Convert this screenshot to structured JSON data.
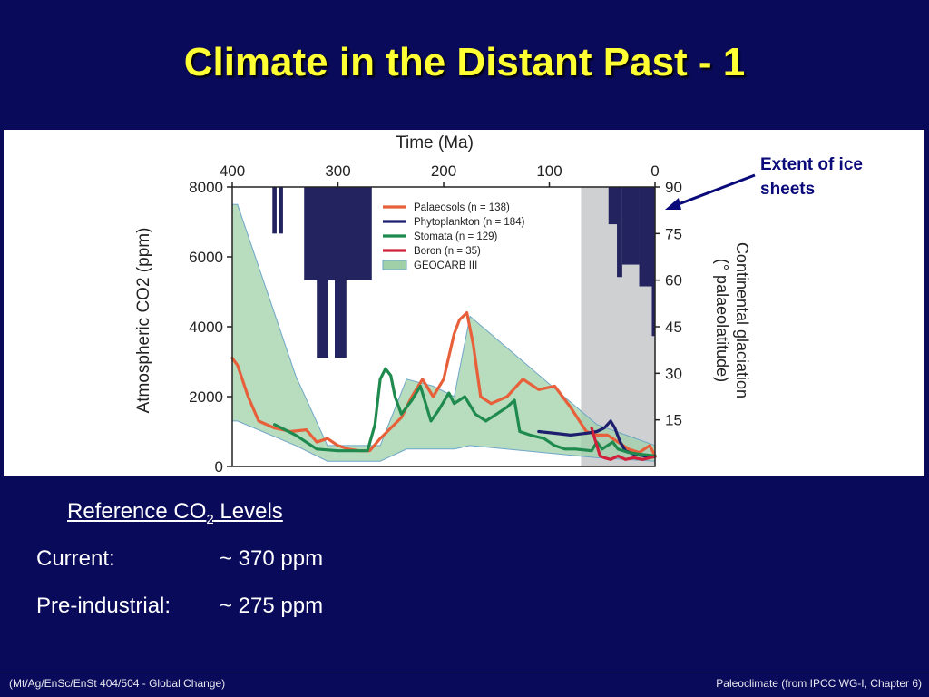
{
  "slide": {
    "title": "Climate in the Distant Past - 1",
    "ice_note": "Extent of ice sheets",
    "reference": {
      "heading_pre": "Reference CO",
      "heading_sub": "2",
      "heading_post": " Levels",
      "rows": [
        {
          "label": "Current:",
          "value": "~ 370 ppm"
        },
        {
          "label": "Pre-industrial:",
          "value": "~ 275 ppm"
        }
      ]
    },
    "footer_left": "(Mt/Ag/EnSc/EnSt 404/504 - Global Change)",
    "footer_right": "Paleoclimate (from IPCC WG-I, Chapter 6)"
  },
  "colors": {
    "background": "#0a0a5a",
    "title": "#ffff33",
    "palaeosols": "#e8603a",
    "phytoplankton": "#1e1e6e",
    "stomata": "#1e8a4e",
    "boron": "#d0203a",
    "geocarb": "#9fd0a8",
    "ice": "#23235f"
  },
  "chart_data": {
    "type": "line",
    "title": "",
    "top_axis_label": "Time (Ma)",
    "top_ticks": [
      "400",
      "300",
      "200",
      "100",
      "0"
    ],
    "ylabel": "Atmospheric CO2 (ppm)",
    "y_ticks": [
      "0",
      "2000",
      "4000",
      "6000",
      "8000"
    ],
    "ylim": [
      0,
      8000
    ],
    "xlim": [
      400,
      0
    ],
    "y2label_line1": "Continental glaciation",
    "y2label_line2": "(° palaeolatitude)",
    "y2_ticks": [
      "15",
      "30",
      "45",
      "60",
      "75",
      "90"
    ],
    "y2lim": [
      0,
      90
    ],
    "legend": [
      {
        "label": "Palaeosols (n = 138)",
        "kind": "line",
        "key": "palaeosols"
      },
      {
        "label": "Phytoplankton (n = 184)",
        "kind": "line",
        "key": "phytoplankton"
      },
      {
        "label": "Stomata (n = 129)",
        "kind": "line",
        "key": "stomata"
      },
      {
        "label": "Boron (n = 35)",
        "kind": "line",
        "key": "boron"
      },
      {
        "label": "GEOCARB III",
        "kind": "band",
        "key": "geocarb"
      }
    ],
    "geocarb_band": {
      "upper": [
        [
          410,
          7500
        ],
        [
          395,
          7500
        ],
        [
          340,
          2600
        ],
        [
          310,
          600
        ],
        [
          260,
          600
        ],
        [
          235,
          2500
        ],
        [
          210,
          2300
        ],
        [
          190,
          2000
        ],
        [
          175,
          4300
        ],
        [
          55,
          1200
        ],
        [
          0,
          600
        ]
      ],
      "lower": [
        [
          0,
          150
        ],
        [
          55,
          250
        ],
        [
          175,
          600
        ],
        [
          190,
          500
        ],
        [
          235,
          500
        ],
        [
          260,
          150
        ],
        [
          310,
          150
        ],
        [
          340,
          600
        ],
        [
          395,
          1300
        ],
        [
          410,
          1300
        ]
      ]
    },
    "series": [
      {
        "name": "Palaeosols",
        "key": "palaeosols",
        "points": [
          [
            410,
            3100
          ],
          [
            395,
            2900
          ],
          [
            385,
            2000
          ],
          [
            375,
            1300
          ],
          [
            360,
            1100
          ],
          [
            345,
            1000
          ],
          [
            330,
            1050
          ],
          [
            320,
            700
          ],
          [
            310,
            800
          ],
          [
            300,
            600
          ],
          [
            290,
            500
          ],
          [
            280,
            450
          ],
          [
            270,
            450
          ],
          [
            260,
            800
          ],
          [
            240,
            1400
          ],
          [
            230,
            2000
          ],
          [
            220,
            2500
          ],
          [
            210,
            2000
          ],
          [
            200,
            2500
          ],
          [
            190,
            3800
          ],
          [
            185,
            4200
          ],
          [
            178,
            4400
          ],
          [
            172,
            3500
          ],
          [
            165,
            2000
          ],
          [
            155,
            1800
          ],
          [
            140,
            2000
          ],
          [
            125,
            2500
          ],
          [
            110,
            2200
          ],
          [
            95,
            2300
          ],
          [
            80,
            1700
          ],
          [
            65,
            1000
          ],
          [
            55,
            900
          ],
          [
            45,
            900
          ],
          [
            35,
            700
          ],
          [
            25,
            500
          ],
          [
            15,
            400
          ],
          [
            5,
            600
          ],
          [
            0,
            300
          ]
        ]
      },
      {
        "name": "Phytoplankton",
        "key": "phytoplankton",
        "points": [
          [
            110,
            1000
          ],
          [
            95,
            950
          ],
          [
            80,
            900
          ],
          [
            65,
            950
          ],
          [
            55,
            1000
          ],
          [
            48,
            1100
          ],
          [
            42,
            1300
          ],
          [
            38,
            1100
          ],
          [
            33,
            700
          ],
          [
            28,
            450
          ],
          [
            20,
            350
          ],
          [
            10,
            300
          ],
          [
            0,
            280
          ]
        ]
      },
      {
        "name": "Stomata",
        "key": "stomata",
        "points": [
          [
            360,
            1200
          ],
          [
            340,
            900
          ],
          [
            320,
            500
          ],
          [
            300,
            450
          ],
          [
            285,
            450
          ],
          [
            272,
            450
          ],
          [
            265,
            1200
          ],
          [
            260,
            2500
          ],
          [
            255,
            2800
          ],
          [
            250,
            2600
          ],
          [
            246,
            2000
          ],
          [
            240,
            1500
          ],
          [
            230,
            1900
          ],
          [
            222,
            2300
          ],
          [
            212,
            1300
          ],
          [
            205,
            1600
          ],
          [
            195,
            2100
          ],
          [
            190,
            1800
          ],
          [
            180,
            2000
          ],
          [
            170,
            1500
          ],
          [
            160,
            1300
          ],
          [
            150,
            1500
          ],
          [
            140,
            1700
          ],
          [
            133,
            1900
          ],
          [
            128,
            1000
          ],
          [
            118,
            900
          ],
          [
            105,
            800
          ],
          [
            95,
            600
          ],
          [
            85,
            500
          ],
          [
            75,
            500
          ],
          [
            60,
            450
          ],
          [
            55,
            700
          ],
          [
            50,
            500
          ],
          [
            45,
            600
          ],
          [
            40,
            700
          ],
          [
            35,
            500
          ],
          [
            25,
            400
          ],
          [
            15,
            350
          ],
          [
            5,
            320
          ],
          [
            0,
            300
          ]
        ]
      },
      {
        "name": "Boron",
        "key": "boron",
        "points": [
          [
            60,
            1100
          ],
          [
            58,
            900
          ],
          [
            55,
            600
          ],
          [
            52,
            300
          ],
          [
            48,
            250
          ],
          [
            42,
            200
          ],
          [
            35,
            300
          ],
          [
            28,
            200
          ],
          [
            20,
            250
          ],
          [
            12,
            200
          ],
          [
            5,
            250
          ],
          [
            0,
            280
          ]
        ]
      }
    ],
    "ice_sheets": [
      {
        "t_start": 362,
        "t_end": 358,
        "lat_from": 90,
        "lat_to": 75
      },
      {
        "t_start": 356,
        "t_end": 352,
        "lat_from": 90,
        "lat_to": 75
      },
      {
        "t_start": 332,
        "t_end": 268,
        "lat_from": 90,
        "lat_to": 60
      },
      {
        "t_start": 320,
        "t_end": 309,
        "lat_from": 90,
        "lat_to": 35
      },
      {
        "t_start": 303,
        "t_end": 292,
        "lat_from": 90,
        "lat_to": 35
      },
      {
        "t_start": 44,
        "t_end": 35,
        "lat_from": 90,
        "lat_to": 78
      },
      {
        "t_start": 36,
        "t_end": 31,
        "lat_from": 90,
        "lat_to": 61
      },
      {
        "t_start": 31,
        "t_end": 15,
        "lat_from": 90,
        "lat_to": 65
      },
      {
        "t_start": 15,
        "t_end": 3,
        "lat_from": 90,
        "lat_to": 58
      },
      {
        "t_start": 3,
        "t_end": 0,
        "lat_from": 90,
        "lat_to": 42
      }
    ],
    "grey_period": [
      70,
      0
    ]
  }
}
